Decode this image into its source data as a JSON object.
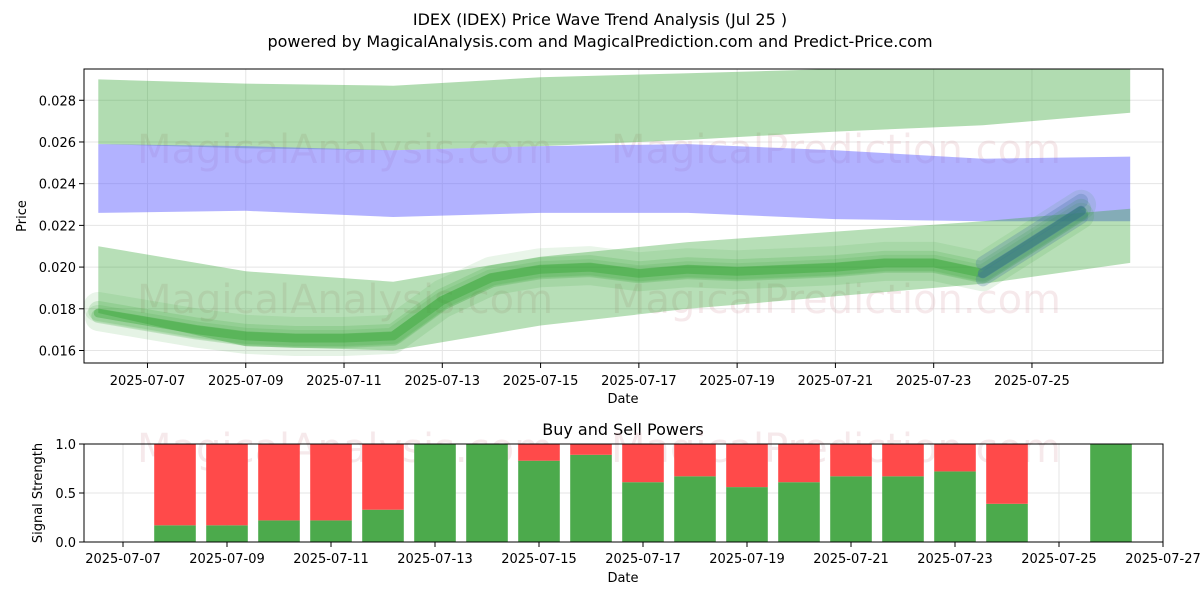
{
  "header": {
    "title": "IDEX (IDEX) Price Wave Trend Analysis (Jul 25 )",
    "subtitle": "powered by MagicalAnalysis.com and MagicalPrediction.com and Predict-Price.com"
  },
  "watermarks": [
    "MagicalAnalysis.com",
    "MagicalPrediction.com"
  ],
  "colors": {
    "price_band": "#2ca02c",
    "resistance_band": "#6666ff",
    "support_band": "#2ca02c",
    "buy": "#4caa4c",
    "sell": "#ff4a4a",
    "forecast_overlay": "#3a6aa0"
  },
  "chart_data": [
    {
      "type": "area",
      "xlabel": "Date",
      "ylabel": "Price",
      "x_ticks": [
        "2025-07-07",
        "2025-07-09",
        "2025-07-11",
        "2025-07-13",
        "2025-07-15",
        "2025-07-17",
        "2025-07-19",
        "2025-07-21",
        "2025-07-23",
        "2025-07-25"
      ],
      "y_ticks": [
        "0.016",
        "0.018",
        "0.020",
        "0.022",
        "0.024",
        "0.026",
        "0.028"
      ],
      "ylim": [
        0.0154,
        0.0295
      ],
      "xlim": [
        "2025-07-05T17:00",
        "2025-07-27T16:00"
      ],
      "grid": true,
      "series": [
        {
          "role": "upper-band",
          "x": [
            "2025-07-06",
            "2025-07-09",
            "2025-07-12",
            "2025-07-15",
            "2025-07-18",
            "2025-07-21",
            "2025-07-24",
            "2025-07-27"
          ],
          "upper": [
            0.029,
            0.0288,
            0.0287,
            0.0291,
            0.0293,
            0.0295,
            0.0295,
            0.0295
          ],
          "lower": [
            0.0259,
            0.0257,
            0.0256,
            0.0258,
            0.0261,
            0.0265,
            0.0268,
            0.0274
          ]
        },
        {
          "role": "middle-band",
          "x": [
            "2025-07-06",
            "2025-07-09",
            "2025-07-12",
            "2025-07-15",
            "2025-07-18",
            "2025-07-21",
            "2025-07-24",
            "2025-07-27"
          ],
          "upper": [
            0.0259,
            0.0258,
            0.0256,
            0.0258,
            0.0259,
            0.0256,
            0.0252,
            0.0253
          ],
          "lower": [
            0.0226,
            0.0227,
            0.0224,
            0.0226,
            0.0226,
            0.0223,
            0.0222,
            0.0222
          ]
        },
        {
          "role": "lower-band",
          "x": [
            "2025-07-06",
            "2025-07-09",
            "2025-07-12",
            "2025-07-15",
            "2025-07-18",
            "2025-07-21",
            "2025-07-24",
            "2025-07-27"
          ],
          "upper": [
            0.021,
            0.0198,
            0.0193,
            0.0205,
            0.0212,
            0.0217,
            0.0222,
            0.0228
          ],
          "lower": [
            0.0178,
            0.0162,
            0.016,
            0.0172,
            0.018,
            0.0186,
            0.0192,
            0.0202
          ]
        },
        {
          "role": "price-wave",
          "x": [
            "2025-07-06",
            "2025-07-07",
            "2025-07-08",
            "2025-07-09",
            "2025-07-10",
            "2025-07-11",
            "2025-07-12",
            "2025-07-13",
            "2025-07-14",
            "2025-07-15",
            "2025-07-16",
            "2025-07-17",
            "2025-07-18",
            "2025-07-19",
            "2025-07-20",
            "2025-07-21",
            "2025-07-22",
            "2025-07-23",
            "2025-07-24",
            "2025-07-25",
            "2025-07-26"
          ],
          "values": [
            0.0178,
            0.0174,
            0.017,
            0.0167,
            0.0166,
            0.0166,
            0.0167,
            0.0184,
            0.0195,
            0.0199,
            0.02,
            0.0197,
            0.0199,
            0.0198,
            0.0199,
            0.02,
            0.0202,
            0.0202,
            0.0197,
            0.0212,
            0.0227
          ]
        }
      ]
    },
    {
      "type": "bar",
      "title": "Buy and Sell Powers",
      "xlabel": "Date",
      "ylabel": "Signal Strength",
      "x_ticks": [
        "2025-07-07",
        "2025-07-09",
        "2025-07-11",
        "2025-07-13",
        "2025-07-15",
        "2025-07-17",
        "2025-07-19",
        "2025-07-21",
        "2025-07-23",
        "2025-07-25",
        "2025-07-27"
      ],
      "y_ticks": [
        "0.0",
        "0.5",
        "1.0"
      ],
      "ylim": [
        0,
        1
      ],
      "xlim": [
        "2025-07-06T06:00",
        "2025-07-27T00:00"
      ],
      "stacked": true,
      "categories": [
        "2025-07-08",
        "2025-07-09",
        "2025-07-10",
        "2025-07-11",
        "2025-07-12",
        "2025-07-13",
        "2025-07-14",
        "2025-07-15",
        "2025-07-16",
        "2025-07-17",
        "2025-07-18",
        "2025-07-19",
        "2025-07-20",
        "2025-07-21",
        "2025-07-22",
        "2025-07-23",
        "2025-07-24",
        "2025-07-26"
      ],
      "series": [
        {
          "role": "buy",
          "values": [
            0.17,
            0.17,
            0.22,
            0.22,
            0.33,
            1.0,
            1.0,
            0.83,
            0.89,
            0.61,
            0.67,
            0.56,
            0.61,
            0.67,
            0.67,
            0.72,
            0.39,
            1.0
          ]
        },
        {
          "role": "sell",
          "values": [
            0.83,
            0.83,
            0.78,
            0.78,
            0.67,
            0.0,
            0.0,
            0.17,
            0.11,
            0.39,
            0.33,
            0.44,
            0.39,
            0.33,
            0.33,
            0.28,
            0.61,
            0.0
          ]
        }
      ]
    }
  ]
}
